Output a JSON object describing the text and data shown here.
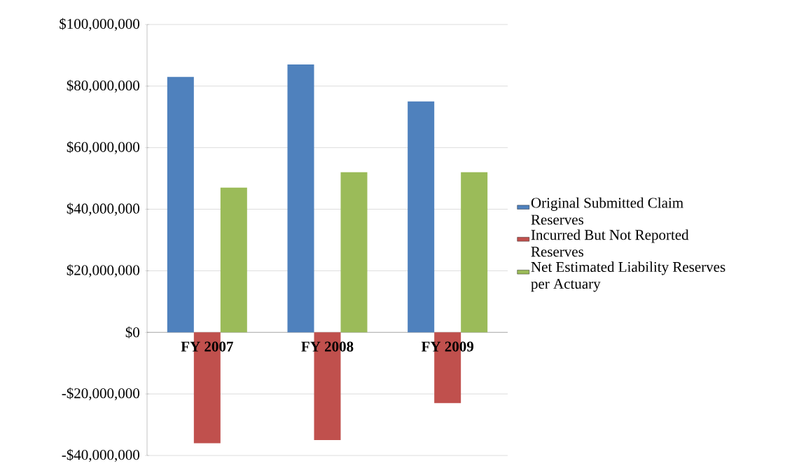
{
  "chart_data": {
    "type": "bar",
    "categories": [
      "FY 2007",
      "FY 2008",
      "FY 2009"
    ],
    "series": [
      {
        "name": "Original Submitted Claim Reserves",
        "color": "#4f81bd",
        "values": [
          83000000,
          87000000,
          75000000
        ]
      },
      {
        "name": "Incurred But Not Reported Reserves",
        "color": "#c0504d",
        "values": [
          -36000000,
          -35000000,
          -23000000
        ]
      },
      {
        "name": "Net Estimated Liability Reserves per Actuary",
        "color": "#9bbb59",
        "values": [
          47000000,
          52000000,
          52000000
        ]
      }
    ],
    "ylim": [
      -40000000,
      100000000
    ],
    "yticks": [
      {
        "value": -40000000,
        "label": "-$40,000,000"
      },
      {
        "value": -20000000,
        "label": "-$20,000,000"
      },
      {
        "value": 0,
        "label": "$0"
      },
      {
        "value": 20000000,
        "label": "$20,000,000"
      },
      {
        "value": 40000000,
        "label": "$40,000,000"
      },
      {
        "value": 60000000,
        "label": "$60,000,000"
      },
      {
        "value": 80000000,
        "label": "$80,000,000"
      },
      {
        "value": 100000000,
        "label": "$100,000,000"
      }
    ],
    "grid": "y",
    "legend": "right"
  }
}
